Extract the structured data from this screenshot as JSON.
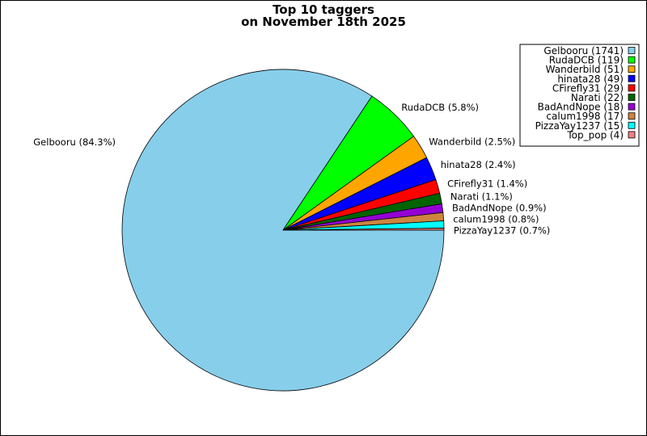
{
  "chart_data": {
    "type": "pie",
    "title": "Top 10 taggers",
    "subtitle": "on November 18th 2025",
    "legend_position": "top-right",
    "slices": [
      {
        "name": "Gelbooru",
        "value": 1741,
        "percent_label": "Gelbooru (84.3%)",
        "legend_label": "Gelbooru (1741)",
        "color": "#87ceeb"
      },
      {
        "name": "RudaDCB",
        "value": 119,
        "percent_label": "RudaDCB (5.8%)",
        "legend_label": "RudaDCB (119)",
        "color": "#00ff00"
      },
      {
        "name": "Wanderbild",
        "value": 51,
        "percent_label": "Wanderbild (2.5%)",
        "legend_label": "Wanderbild (51)",
        "color": "#ffa500"
      },
      {
        "name": "hinata28",
        "value": 49,
        "percent_label": "hinata28 (2.4%)",
        "legend_label": "hinata28 (49)",
        "color": "#0000ff"
      },
      {
        "name": "CFirefly31",
        "value": 29,
        "percent_label": "CFirefly31 (1.4%)",
        "legend_label": "CFirefly31 (29)",
        "color": "#ff0000"
      },
      {
        "name": "Narati",
        "value": 22,
        "percent_label": "Narati (1.1%)",
        "legend_label": "Narati (22)",
        "color": "#006400"
      },
      {
        "name": "BadAndNope",
        "value": 18,
        "percent_label": "BadAndNope (0.9%)",
        "legend_label": "BadAndNope (18)",
        "color": "#9400d3"
      },
      {
        "name": "calum1998",
        "value": 17,
        "percent_label": "calum1998 (0.8%)",
        "legend_label": "calum1998 (17)",
        "color": "#cd853f"
      },
      {
        "name": "PizzaYay1237",
        "value": 15,
        "percent_label": "PizzaYay1237 (0.7%)",
        "legend_label": "PizzaYay1237 (15)",
        "color": "#00ffff"
      },
      {
        "name": "Top_pop",
        "value": 4,
        "percent_label": "",
        "legend_label": "Top_pop (4)",
        "color": "#f08080"
      }
    ]
  }
}
